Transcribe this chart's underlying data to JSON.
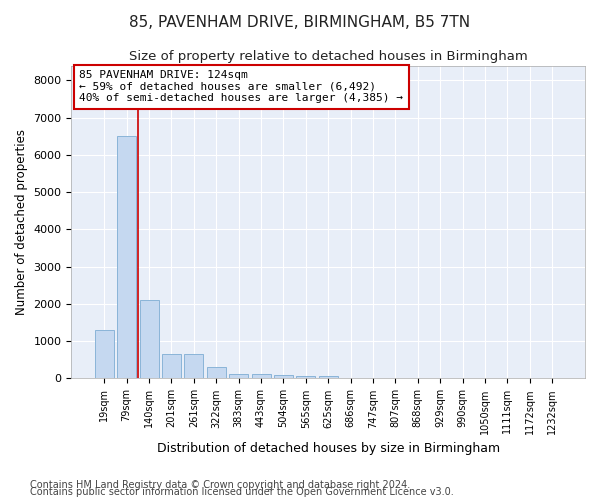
{
  "title": "85, PAVENHAM DRIVE, BIRMINGHAM, B5 7TN",
  "subtitle": "Size of property relative to detached houses in Birmingham",
  "xlabel": "Distribution of detached houses by size in Birmingham",
  "ylabel": "Number of detached properties",
  "footnote1": "Contains HM Land Registry data © Crown copyright and database right 2024.",
  "footnote2": "Contains public sector information licensed under the Open Government Licence v3.0.",
  "bar_labels": [
    "19sqm",
    "79sqm",
    "140sqm",
    "201sqm",
    "261sqm",
    "322sqm",
    "383sqm",
    "443sqm",
    "504sqm",
    "565sqm",
    "625sqm",
    "686sqm",
    "747sqm",
    "807sqm",
    "868sqm",
    "929sqm",
    "990sqm",
    "1050sqm",
    "1111sqm",
    "1172sqm",
    "1232sqm"
  ],
  "bar_values": [
    1300,
    6500,
    2100,
    650,
    650,
    300,
    130,
    130,
    90,
    70,
    70,
    0,
    0,
    0,
    0,
    0,
    0,
    0,
    0,
    0,
    0
  ],
  "bar_color": "#c5d8f0",
  "bar_edgecolor": "#8ab4d8",
  "annotation_box_text": "85 PAVENHAM DRIVE: 124sqm\n← 59% of detached houses are smaller (6,492)\n40% of semi-detached houses are larger (4,385) →",
  "annotation_box_color": "#cc0000",
  "vline_x": 1.5,
  "vline_color": "#cc0000",
  "ylim": [
    0,
    8400
  ],
  "yticks": [
    0,
    1000,
    2000,
    3000,
    4000,
    5000,
    6000,
    7000,
    8000
  ],
  "bg_color": "#ffffff",
  "plot_bg_color": "#e8eef8",
  "grid_color": "#ffffff",
  "title_fontsize": 11,
  "subtitle_fontsize": 9.5,
  "footnote_fontsize": 7
}
